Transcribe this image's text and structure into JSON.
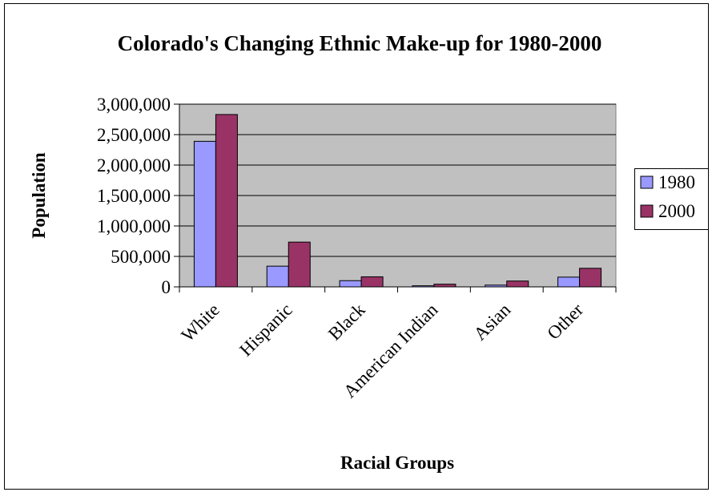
{
  "chart_data": {
    "type": "bar",
    "title": "Colorado's Changing Ethnic Make-up for 1980-2000",
    "xlabel": "Racial Groups",
    "ylabel": "Population",
    "categories": [
      "White",
      "Hispanic",
      "Black",
      "American Indian",
      "Asian",
      "Other"
    ],
    "series": [
      {
        "name": "1980",
        "color": "#9999ff",
        "values": [
          2390000,
          340000,
          102000,
          18000,
          29000,
          160000
        ]
      },
      {
        "name": "2000",
        "color": "#993366",
        "values": [
          2830000,
          735000,
          165000,
          44000,
          96000,
          305000
        ]
      }
    ],
    "ylim": [
      0,
      3000000
    ],
    "yticks": [
      0,
      500000,
      1000000,
      1500000,
      2000000,
      2500000,
      3000000
    ],
    "ytick_labels": [
      "0",
      "500,000",
      "1,000,000",
      "1,500,000",
      "2,000,000",
      "2,500,000",
      "3,000,000"
    ],
    "grid": true,
    "legend_position": "right",
    "plot_background": "#c0c0c0"
  }
}
